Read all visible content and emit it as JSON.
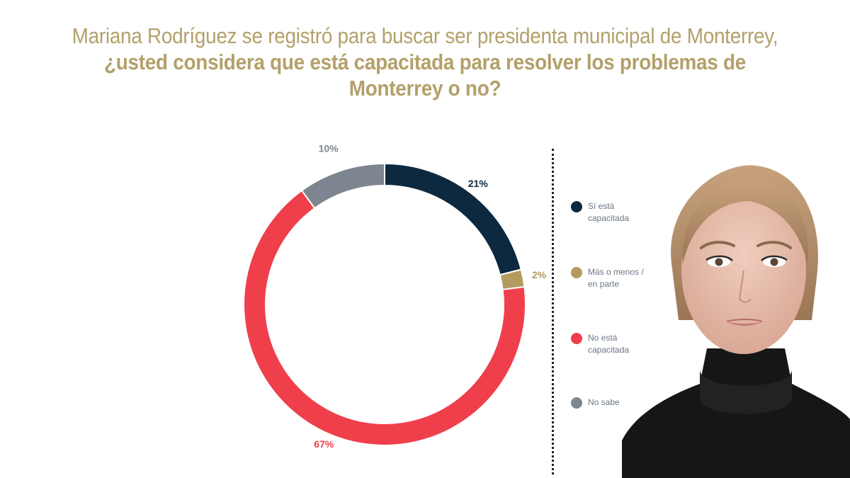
{
  "title": {
    "normal": "Mariana Rodríguez se registró para buscar ser presidenta municipal de Monterrey, ",
    "bold": "¿usted considera que está capacitada para resolver los problemas de Monterrey o no?"
  },
  "colors": {
    "title": "#b3a06a",
    "si": "#0d2940",
    "mas_o_menos": "#b49a5f",
    "no": "#ef3f4b",
    "no_sabe": "#7d8690"
  },
  "chart_data": {
    "type": "pie",
    "variant": "donut",
    "slices": [
      {
        "label": "Sí está capacitada",
        "value": 21,
        "display": "21%",
        "color": "#0d2940"
      },
      {
        "label": "Más o menos / en parte",
        "value": 2,
        "display": "2%",
        "color": "#b49a5f"
      },
      {
        "label": "No está capacitada",
        "value": 67,
        "display": "67%",
        "color": "#ef3f4b"
      },
      {
        "label": "No sabe",
        "value": 10,
        "display": "10%",
        "color": "#7d8690"
      }
    ],
    "legend_position": "right"
  },
  "legend": {
    "items": [
      {
        "label": "Sí está capacitada",
        "color": "#0d2940"
      },
      {
        "label": "Más o menos / en parte",
        "color": "#b49a5f"
      },
      {
        "label": "No está capacitada",
        "color": "#ef3f4b"
      },
      {
        "label": "No sabe",
        "color": "#7d8690"
      }
    ]
  }
}
